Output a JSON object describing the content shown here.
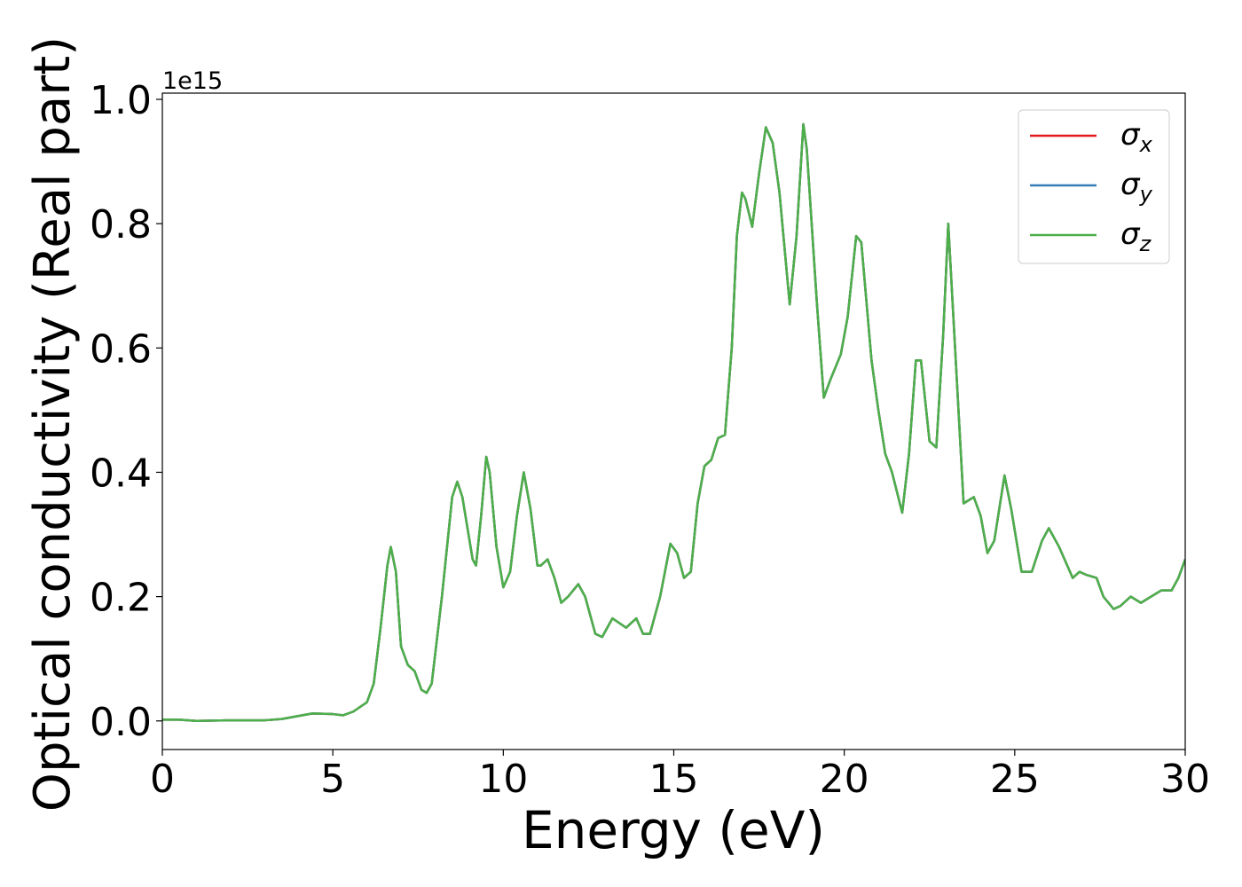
{
  "chart_data": {
    "type": "line",
    "xlabel": "Energy (eV)",
    "ylabel": "Optical conductivity (Real part)",
    "offset_label": "1e15",
    "x": [
      0,
      0.5,
      1,
      2,
      3,
      3.5,
      4,
      4.4,
      5,
      5.3,
      5.6,
      6,
      6.2,
      6.4,
      6.6,
      6.7,
      6.85,
      7.0,
      7.2,
      7.4,
      7.6,
      7.75,
      7.9,
      8.2,
      8.5,
      8.65,
      8.8,
      9.1,
      9.2,
      9.35,
      9.5,
      9.6,
      9.8,
      10.0,
      10.2,
      10.4,
      10.6,
      10.8,
      11.0,
      11.1,
      11.3,
      11.5,
      11.7,
      11.9,
      12.2,
      12.4,
      12.7,
      12.9,
      13.2,
      13.6,
      13.9,
      14.1,
      14.3,
      14.6,
      14.9,
      15.1,
      15.3,
      15.5,
      15.7,
      15.9,
      16.1,
      16.3,
      16.5,
      16.7,
      16.85,
      17.0,
      17.1,
      17.3,
      17.5,
      17.7,
      17.9,
      18.1,
      18.4,
      18.6,
      18.8,
      18.9,
      19.2,
      19.4,
      19.6,
      19.9,
      20.1,
      20.35,
      20.5,
      20.8,
      21.0,
      21.2,
      21.4,
      21.7,
      21.9,
      22.1,
      22.25,
      22.5,
      22.7,
      22.9,
      23.05,
      23.2,
      23.5,
      23.8,
      24.0,
      24.2,
      24.4,
      24.7,
      24.9,
      25.2,
      25.5,
      25.8,
      26.0,
      26.3,
      26.7,
      26.9,
      27.1,
      27.4,
      27.6,
      27.9,
      28.1,
      28.4,
      28.7,
      29.0,
      29.3,
      29.6,
      29.8,
      30
    ],
    "series": [
      {
        "name": "σx",
        "color": "#e41a1c",
        "values": [
          0.002,
          0.002,
          0.0,
          0.001,
          0.001,
          0.003,
          0.008,
          0.012,
          0.011,
          0.009,
          0.015,
          0.03,
          0.06,
          0.15,
          0.25,
          0.28,
          0.24,
          0.12,
          0.09,
          0.08,
          0.05,
          0.045,
          0.06,
          0.2,
          0.36,
          0.385,
          0.36,
          0.26,
          0.25,
          0.33,
          0.425,
          0.4,
          0.28,
          0.215,
          0.24,
          0.33,
          0.4,
          0.34,
          0.25,
          0.25,
          0.26,
          0.23,
          0.19,
          0.2,
          0.22,
          0.2,
          0.14,
          0.135,
          0.165,
          0.15,
          0.165,
          0.14,
          0.14,
          0.2,
          0.285,
          0.27,
          0.23,
          0.24,
          0.35,
          0.41,
          0.42,
          0.455,
          0.46,
          0.6,
          0.78,
          0.85,
          0.84,
          0.795,
          0.88,
          0.955,
          0.93,
          0.85,
          0.67,
          0.78,
          0.96,
          0.92,
          0.67,
          0.52,
          0.55,
          0.59,
          0.65,
          0.78,
          0.77,
          0.58,
          0.5,
          0.43,
          0.4,
          0.335,
          0.43,
          0.58,
          0.58,
          0.45,
          0.44,
          0.62,
          0.8,
          0.65,
          0.35,
          0.36,
          0.33,
          0.27,
          0.29,
          0.395,
          0.34,
          0.24,
          0.24,
          0.29,
          0.31,
          0.28,
          0.23,
          0.24,
          0.235,
          0.23,
          0.2,
          0.18,
          0.185,
          0.2,
          0.19,
          0.2,
          0.21,
          0.21,
          0.23,
          0.26
        ]
      },
      {
        "name": "σy",
        "color": "#377eb8",
        "values": [
          0.002,
          0.002,
          0.0,
          0.001,
          0.001,
          0.003,
          0.008,
          0.012,
          0.011,
          0.009,
          0.015,
          0.03,
          0.06,
          0.15,
          0.25,
          0.28,
          0.24,
          0.12,
          0.09,
          0.08,
          0.05,
          0.045,
          0.06,
          0.2,
          0.36,
          0.385,
          0.36,
          0.26,
          0.25,
          0.33,
          0.425,
          0.4,
          0.28,
          0.215,
          0.24,
          0.33,
          0.4,
          0.34,
          0.25,
          0.25,
          0.26,
          0.23,
          0.19,
          0.2,
          0.22,
          0.2,
          0.14,
          0.135,
          0.165,
          0.15,
          0.165,
          0.14,
          0.14,
          0.2,
          0.285,
          0.27,
          0.23,
          0.24,
          0.35,
          0.41,
          0.42,
          0.455,
          0.46,
          0.6,
          0.78,
          0.85,
          0.84,
          0.795,
          0.88,
          0.955,
          0.93,
          0.85,
          0.67,
          0.78,
          0.96,
          0.92,
          0.67,
          0.52,
          0.55,
          0.59,
          0.65,
          0.78,
          0.77,
          0.58,
          0.5,
          0.43,
          0.4,
          0.335,
          0.43,
          0.58,
          0.58,
          0.45,
          0.44,
          0.62,
          0.8,
          0.65,
          0.35,
          0.36,
          0.33,
          0.27,
          0.29,
          0.395,
          0.34,
          0.24,
          0.24,
          0.29,
          0.31,
          0.28,
          0.23,
          0.24,
          0.235,
          0.23,
          0.2,
          0.18,
          0.185,
          0.2,
          0.19,
          0.2,
          0.21,
          0.21,
          0.23,
          0.26
        ]
      },
      {
        "name": "σz",
        "color": "#4daf4a",
        "values": [
          0.002,
          0.002,
          0.0,
          0.001,
          0.001,
          0.003,
          0.008,
          0.012,
          0.011,
          0.009,
          0.015,
          0.03,
          0.06,
          0.15,
          0.25,
          0.28,
          0.24,
          0.12,
          0.09,
          0.08,
          0.05,
          0.045,
          0.06,
          0.2,
          0.36,
          0.385,
          0.36,
          0.26,
          0.25,
          0.33,
          0.425,
          0.4,
          0.28,
          0.215,
          0.24,
          0.33,
          0.4,
          0.34,
          0.25,
          0.25,
          0.26,
          0.23,
          0.19,
          0.2,
          0.22,
          0.2,
          0.14,
          0.135,
          0.165,
          0.15,
          0.165,
          0.14,
          0.14,
          0.2,
          0.285,
          0.27,
          0.23,
          0.24,
          0.35,
          0.41,
          0.42,
          0.455,
          0.46,
          0.6,
          0.78,
          0.85,
          0.84,
          0.795,
          0.88,
          0.955,
          0.93,
          0.85,
          0.67,
          0.78,
          0.96,
          0.92,
          0.67,
          0.52,
          0.55,
          0.59,
          0.65,
          0.78,
          0.77,
          0.58,
          0.5,
          0.43,
          0.4,
          0.335,
          0.43,
          0.58,
          0.58,
          0.45,
          0.44,
          0.62,
          0.8,
          0.65,
          0.35,
          0.36,
          0.33,
          0.27,
          0.29,
          0.395,
          0.34,
          0.24,
          0.24,
          0.29,
          0.31,
          0.28,
          0.23,
          0.24,
          0.235,
          0.23,
          0.2,
          0.18,
          0.185,
          0.2,
          0.19,
          0.2,
          0.21,
          0.21,
          0.23,
          0.26
        ]
      }
    ],
    "xlim": [
      0,
      30
    ],
    "xticks": [
      0,
      5,
      10,
      15,
      20,
      25,
      30
    ],
    "ylim": [
      -0.046,
      1.01
    ],
    "yticks": [
      {
        "value": 0,
        "label": "0.0"
      },
      {
        "value": 0.2,
        "label": "0.2"
      },
      {
        "value": 0.4,
        "label": "0.4"
      },
      {
        "value": 0.6,
        "label": "0.6"
      },
      {
        "value": 0.8,
        "label": "0.8"
      },
      {
        "value": 1.0,
        "label": "1.0"
      }
    ],
    "grid": false,
    "legend": "upper right"
  }
}
